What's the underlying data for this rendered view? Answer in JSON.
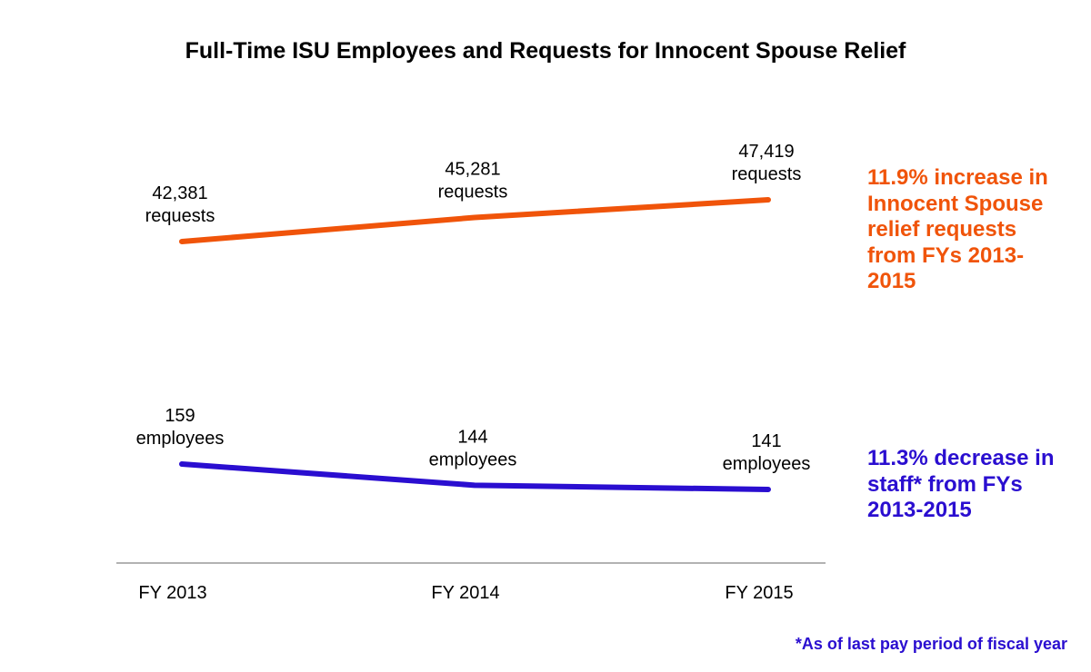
{
  "chart_data": {
    "type": "line",
    "title": "Full-Time ISU Employees and Requests for Innocent Spouse Relief",
    "categories": [
      "FY 2013",
      "FY 2014",
      "FY 2015"
    ],
    "xlabel": "",
    "ylabel": "",
    "grid": false,
    "series": [
      {
        "name": "requests",
        "unit": "requests",
        "color": "#F0540A",
        "values": [
          42381,
          45281,
          47419
        ],
        "labels": [
          "42,381",
          "45,281",
          "47,419"
        ]
      },
      {
        "name": "employees",
        "unit": "employees",
        "color": "#2A0ED0",
        "values": [
          159,
          144,
          141
        ],
        "labels": [
          "159",
          "144",
          "141"
        ]
      }
    ],
    "annotations": [
      {
        "text": "11.9% increase in Innocent Spouse relief requests from FYs 2013-2015",
        "color": "#F0540A"
      },
      {
        "text": "11.3% decrease in staff* from FYs 2013-2015",
        "color": "#2A0ED0"
      }
    ],
    "footnote": "*As of last pay period of fiscal year",
    "footnote_color": "#2A0ED0"
  }
}
